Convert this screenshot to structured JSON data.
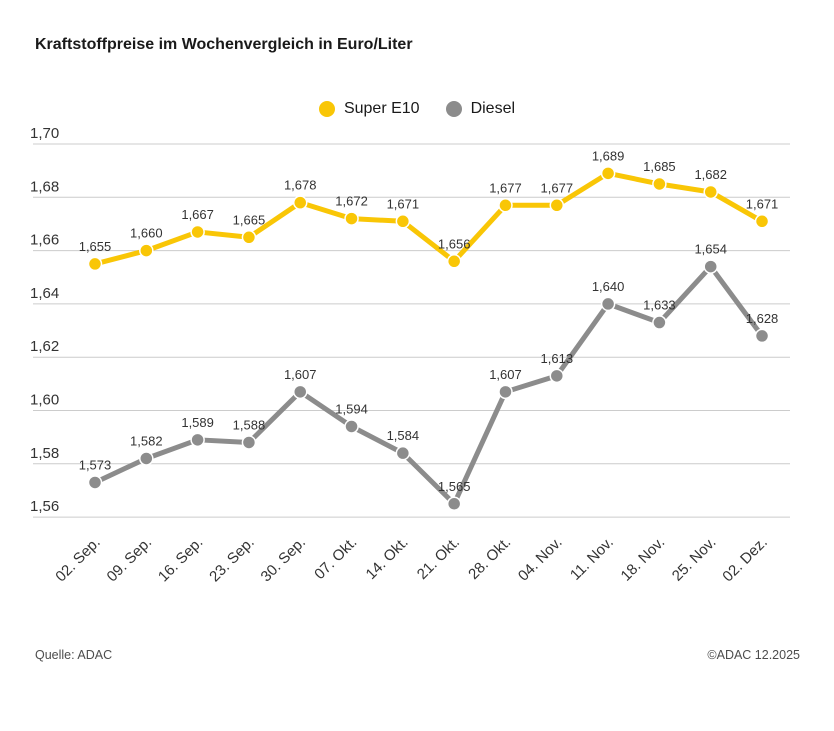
{
  "title": "Kraftstoffpreise im Wochenvergleich in Euro/Liter",
  "legend": [
    {
      "label": "Super E10",
      "color": "#F9C606"
    },
    {
      "label": "Diesel",
      "color": "#8C8C8C"
    }
  ],
  "footer": {
    "source": "Quelle: ADAC",
    "copyright": "©ADAC 12.2025"
  },
  "colors": {
    "super_e10": "#F9C606",
    "diesel": "#8C8C8C",
    "gridline": "#cccccc",
    "axis_text": "#333333"
  },
  "chart_data": {
    "type": "line",
    "title": "Kraftstoffpreise im Wochenvergleich in Euro/Liter",
    "categories": [
      "02. Sep.",
      "09. Sep.",
      "16. Sep.",
      "23. Sep.",
      "30. Sep.",
      "07. Okt.",
      "14. Okt.",
      "21. Okt.",
      "28. Okt.",
      "04. Nov.",
      "11. Nov.",
      "18. Nov.",
      "25. Nov.",
      "02. Dez."
    ],
    "series": [
      {
        "name": "Super E10",
        "color": "#F9C606",
        "values": [
          1.655,
          1.66,
          1.667,
          1.665,
          1.678,
          1.672,
          1.671,
          1.656,
          1.677,
          1.677,
          1.689,
          1.685,
          1.682,
          1.671
        ],
        "labels": [
          "1,655",
          "1,660",
          "1,667",
          "1,665",
          "1,678",
          "1,672",
          "1,671",
          "1,656",
          "1,677",
          "1,677",
          "1,689",
          "1,685",
          "1,682",
          "1,671"
        ]
      },
      {
        "name": "Diesel",
        "color": "#8C8C8C",
        "values": [
          1.573,
          1.582,
          1.589,
          1.588,
          1.607,
          1.594,
          1.584,
          1.565,
          1.607,
          1.613,
          1.64,
          1.633,
          1.654,
          1.628
        ],
        "labels": [
          "1,573",
          "1,582",
          "1,589",
          "1,588",
          "1,607",
          "1,594",
          "1,584",
          "1,565",
          "1,607",
          "1,613",
          "1,640",
          "1,633",
          "1,654",
          "1,628"
        ]
      }
    ],
    "yticks": {
      "values": [
        1.7,
        1.68,
        1.66,
        1.64,
        1.62,
        1.6,
        1.58,
        1.56
      ],
      "labels": [
        "1,70",
        "1,68",
        "1,66",
        "1,64",
        "1,62",
        "1,60",
        "1,58",
        "1,56"
      ]
    },
    "ylim": [
      1.56,
      1.7
    ],
    "unit": "Euro/Liter",
    "grid": true,
    "legend_position": "top-center"
  }
}
